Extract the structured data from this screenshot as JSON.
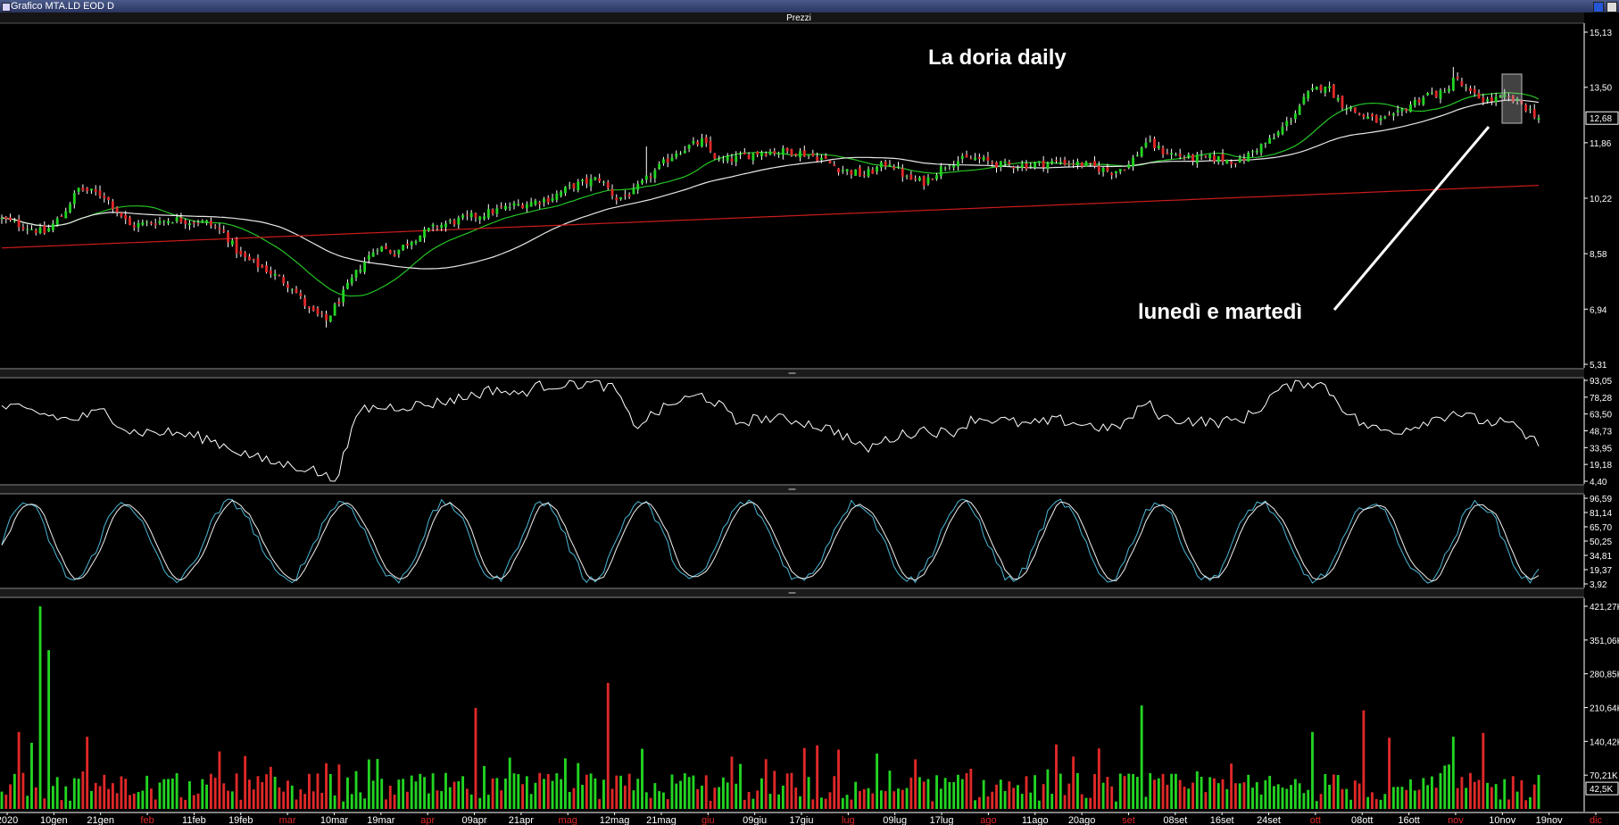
{
  "window": {
    "title": "Grafico MTA.LD EOD D"
  },
  "panels": {
    "price_title": "Prezzi"
  },
  "chart_data": [
    {
      "type": "candlestick",
      "title": "La doria daily",
      "annotation": "lunedì e martedì",
      "y_ticks": [
        "15,13",
        "13,50",
        "11,86",
        "10,22",
        "8,58",
        "6,94",
        "5,31"
      ],
      "y_tick_values": [
        15.13,
        13.5,
        11.86,
        10.22,
        8.58,
        6.94,
        5.31
      ],
      "ylim": [
        5.31,
        15.13
      ],
      "last_price": "12,68",
      "grid": false,
      "x_labels": [
        {
          "text": "2020",
          "red": false
        },
        {
          "text": "10gen",
          "red": false
        },
        {
          "text": "21gen",
          "red": false
        },
        {
          "text": "feb",
          "red": true
        },
        {
          "text": "11feb",
          "red": false
        },
        {
          "text": "19feb",
          "red": false
        },
        {
          "text": "mar",
          "red": true
        },
        {
          "text": "10mar",
          "red": false
        },
        {
          "text": "19mar",
          "red": false
        },
        {
          "text": "apr",
          "red": true
        },
        {
          "text": "09apr",
          "red": false
        },
        {
          "text": "21apr",
          "red": false
        },
        {
          "text": "mag",
          "red": true
        },
        {
          "text": "12mag",
          "red": false
        },
        {
          "text": "21mag",
          "red": false
        },
        {
          "text": "giu",
          "red": true
        },
        {
          "text": "09giu",
          "red": false
        },
        {
          "text": "17giu",
          "red": false
        },
        {
          "text": "lug",
          "red": true
        },
        {
          "text": "09lug",
          "red": false
        },
        {
          "text": "17lug",
          "red": false
        },
        {
          "text": "ago",
          "red": true
        },
        {
          "text": "11ago",
          "red": false
        },
        {
          "text": "20ago",
          "red": false
        },
        {
          "text": "set",
          "red": true
        },
        {
          "text": "08set",
          "red": false
        },
        {
          "text": "16set",
          "red": false
        },
        {
          "text": "24set",
          "red": false
        },
        {
          "text": "ott",
          "red": true
        },
        {
          "text": "08ott",
          "red": false
        },
        {
          "text": "16ott",
          "red": false
        },
        {
          "text": "nov",
          "red": true
        },
        {
          "text": "10nov",
          "red": false
        },
        {
          "text": "19nov",
          "red": false
        },
        {
          "text": "dic",
          "red": true
        }
      ],
      "close_anchors": [
        [
          0,
          9.6
        ],
        [
          10,
          9.2
        ],
        [
          14,
          9.7
        ],
        [
          18,
          10.5
        ],
        [
          24,
          10.3
        ],
        [
          30,
          9.4
        ],
        [
          40,
          9.6
        ],
        [
          48,
          9.5
        ],
        [
          52,
          9.2
        ],
        [
          56,
          8.5
        ],
        [
          62,
          8.1
        ],
        [
          68,
          7.6
        ],
        [
          72,
          6.9
        ],
        [
          76,
          6.6
        ],
        [
          79,
          7.2
        ],
        [
          84,
          8.2
        ],
        [
          88,
          8.8
        ],
        [
          92,
          8.6
        ],
        [
          96,
          9.0
        ],
        [
          102,
          9.4
        ],
        [
          108,
          9.6
        ],
        [
          114,
          9.8
        ],
        [
          120,
          10.0
        ],
        [
          128,
          10.2
        ],
        [
          134,
          10.6
        ],
        [
          140,
          10.8
        ],
        [
          144,
          10.2
        ],
        [
          148,
          10.4
        ],
        [
          152,
          10.9
        ],
        [
          158,
          11.6
        ],
        [
          164,
          11.9
        ],
        [
          168,
          11.3
        ],
        [
          172,
          11.4
        ],
        [
          178,
          11.6
        ],
        [
          186,
          11.6
        ],
        [
          192,
          11.4
        ],
        [
          196,
          11.1
        ],
        [
          202,
          10.9
        ],
        [
          208,
          11.3
        ],
        [
          212,
          10.8
        ],
        [
          216,
          10.7
        ],
        [
          222,
          11.3
        ],
        [
          228,
          11.4
        ],
        [
          234,
          11.2
        ],
        [
          240,
          11.2
        ],
        [
          248,
          11.3
        ],
        [
          254,
          11.2
        ],
        [
          260,
          11.0
        ],
        [
          264,
          11.2
        ],
        [
          268,
          11.9
        ],
        [
          272,
          11.6
        ],
        [
          278,
          11.4
        ],
        [
          284,
          11.4
        ],
        [
          290,
          11.3
        ],
        [
          294,
          11.7
        ],
        [
          298,
          12.0
        ],
        [
          302,
          12.6
        ],
        [
          306,
          13.3
        ],
        [
          310,
          13.6
        ],
        [
          314,
          13.0
        ],
        [
          318,
          12.7
        ],
        [
          322,
          12.5
        ],
        [
          326,
          12.6
        ],
        [
          330,
          13.0
        ],
        [
          334,
          13.3
        ],
        [
          338,
          13.3
        ],
        [
          340,
          13.8
        ],
        [
          344,
          13.3
        ],
        [
          348,
          13.1
        ],
        [
          352,
          13.2
        ],
        [
          356,
          13.0
        ],
        [
          358,
          12.8
        ],
        [
          360,
          12.6
        ]
      ],
      "moving_averages": [
        {
          "name": "",
          "color": "#25c425",
          "period": 20
        },
        {
          "name": "",
          "color": "#e8e8e8",
          "period": 50
        },
        {
          "name": "",
          "color": "#cc1c1c",
          "period": 200
        }
      ]
    },
    {
      "type": "line",
      "y_ticks": [
        "93,05",
        "78,28",
        "63,50",
        "48,73",
        "33,95",
        "19,18",
        "4,40"
      ],
      "ylim": [
        4.4,
        93.05
      ],
      "color": "#ffffff",
      "anchors": [
        [
          0,
          70
        ],
        [
          8,
          65
        ],
        [
          16,
          58
        ],
        [
          24,
          66
        ],
        [
          30,
          48
        ],
        [
          40,
          47
        ],
        [
          48,
          42
        ],
        [
          56,
          30
        ],
        [
          62,
          22
        ],
        [
          68,
          18
        ],
        [
          72,
          16
        ],
        [
          78,
          4.4
        ],
        [
          84,
          68
        ],
        [
          92,
          70
        ],
        [
          100,
          72
        ],
        [
          108,
          78
        ],
        [
          116,
          86
        ],
        [
          120,
          80
        ],
        [
          126,
          88
        ],
        [
          132,
          90
        ],
        [
          140,
          90
        ],
        [
          144,
          84
        ],
        [
          148,
          52
        ],
        [
          152,
          62
        ],
        [
          158,
          74
        ],
        [
          164,
          80
        ],
        [
          168,
          72
        ],
        [
          172,
          56
        ],
        [
          178,
          60
        ],
        [
          186,
          58
        ],
        [
          192,
          52
        ],
        [
          196,
          48
        ],
        [
          202,
          32
        ],
        [
          208,
          42
        ],
        [
          212,
          46
        ],
        [
          216,
          50
        ],
        [
          222,
          46
        ],
        [
          228,
          60
        ],
        [
          234,
          58
        ],
        [
          240,
          54
        ],
        [
          248,
          58
        ],
        [
          254,
          54
        ],
        [
          260,
          50
        ],
        [
          264,
          58
        ],
        [
          268,
          74
        ],
        [
          272,
          60
        ],
        [
          278,
          58
        ],
        [
          284,
          56
        ],
        [
          290,
          58
        ],
        [
          294,
          66
        ],
        [
          298,
          82
        ],
        [
          302,
          88
        ],
        [
          306,
          92
        ],
        [
          310,
          88
        ],
        [
          314,
          70
        ],
        [
          318,
          56
        ],
        [
          322,
          50
        ],
        [
          326,
          48
        ],
        [
          330,
          52
        ],
        [
          334,
          58
        ],
        [
          338,
          62
        ],
        [
          340,
          66
        ],
        [
          344,
          60
        ],
        [
          348,
          56
        ],
        [
          352,
          56
        ],
        [
          356,
          48
        ],
        [
          358,
          40
        ],
        [
          360,
          40
        ]
      ]
    },
    {
      "type": "line",
      "y_ticks": [
        "96,59",
        "81,14",
        "65,70",
        "50,25",
        "34,81",
        "19,37",
        "3,92"
      ],
      "ylim": [
        3.92,
        96.59
      ],
      "series": [
        {
          "name": "",
          "color": "#4ab7d6"
        },
        {
          "name": "",
          "color": "#f0f0f0"
        }
      ],
      "oscillator": {
        "period": 14,
        "smooth": 3
      }
    },
    {
      "type": "bar",
      "y_ticks": [
        "421,27K",
        "351,06K",
        "280,85K",
        "210,64K",
        "140,42K",
        "70,21K"
      ],
      "ylim": [
        0,
        421270
      ],
      "last_volume": "42,5K",
      "up_color": "#22d422",
      "down_color": "#e02828",
      "spikes": [
        [
          4,
          160000
        ],
        [
          9,
          421000
        ],
        [
          11,
          330000
        ],
        [
          20,
          150000
        ],
        [
          57,
          110000
        ],
        [
          76,
          95000
        ],
        [
          111,
          210000
        ],
        [
          142,
          262000
        ],
        [
          150,
          125000
        ],
        [
          267,
          215000
        ],
        [
          307,
          160000
        ],
        [
          319,
          205000
        ],
        [
          325,
          148000
        ],
        [
          340,
          150000
        ],
        [
          347,
          158000
        ]
      ]
    }
  ]
}
